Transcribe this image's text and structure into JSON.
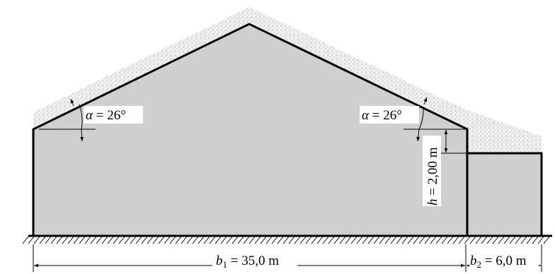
{
  "labels": {
    "alpha_left": {
      "symbol": "α",
      "text": " = 26°"
    },
    "alpha_right": {
      "symbol": "α",
      "text": " = 26°"
    },
    "h": {
      "symbol": "h",
      "text": " = 2,00 m"
    },
    "b1": {
      "symbol": "b",
      "sub": "1",
      "text": " = 35,0 m"
    },
    "b2": {
      "symbol": "b",
      "sub": "2",
      "text": " = 6,0 m"
    }
  },
  "colors": {
    "wall_fill": "#d3d3d3",
    "snow_fill": "#eeeeee",
    "line": "#000000"
  }
}
